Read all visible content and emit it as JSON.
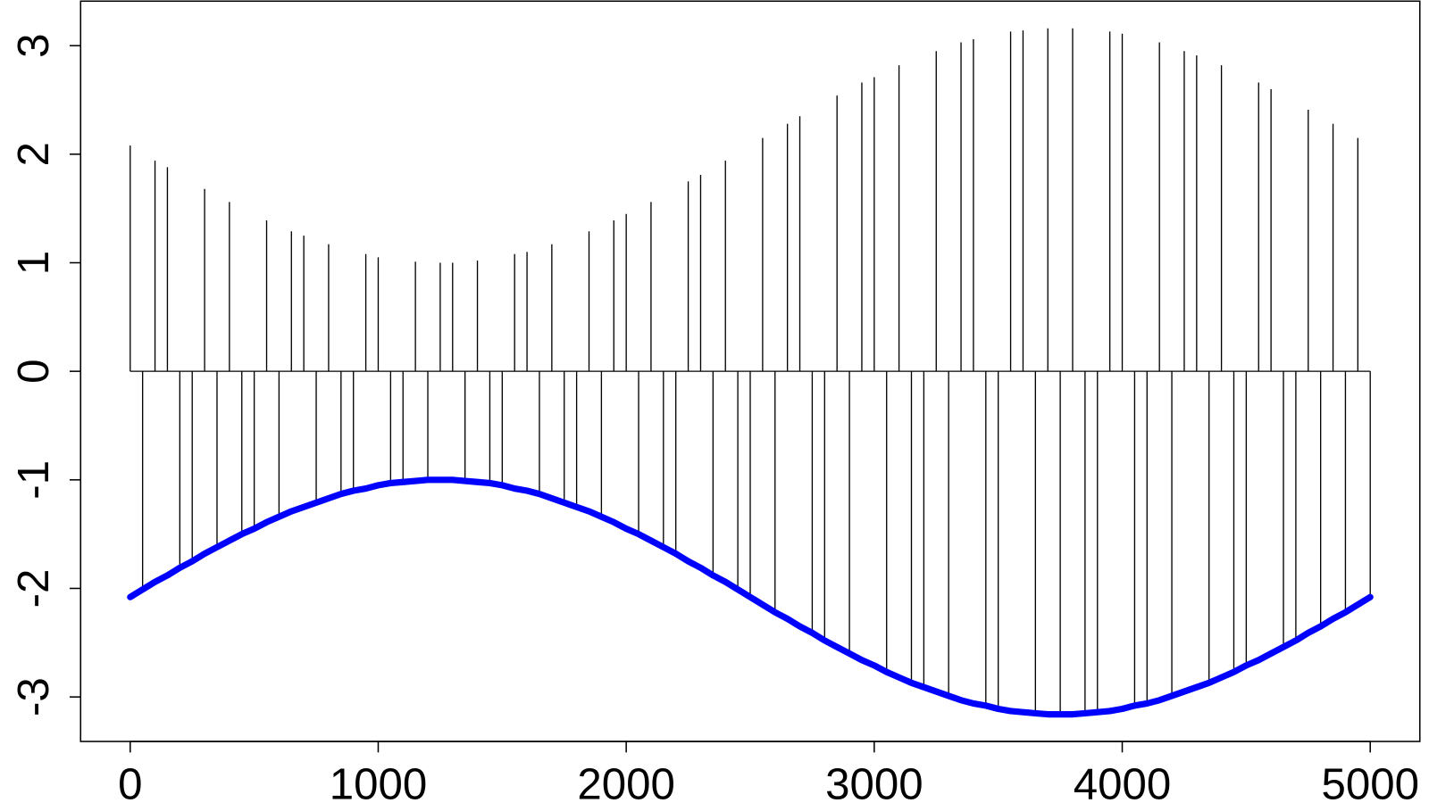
{
  "chart_data": {
    "type": "line",
    "x": [
      0,
      50,
      100,
      150,
      200,
      250,
      300,
      350,
      400,
      450,
      500,
      550,
      600,
      650,
      700,
      750,
      800,
      850,
      900,
      950,
      1000,
      1050,
      1100,
      1150,
      1200,
      1250,
      1300,
      1350,
      1400,
      1450,
      1500,
      1550,
      1600,
      1650,
      1700,
      1750,
      1800,
      1850,
      1900,
      1950,
      2000,
      2050,
      2100,
      2150,
      2200,
      2250,
      2300,
      2350,
      2400,
      2450,
      2500,
      2550,
      2600,
      2650,
      2700,
      2750,
      2800,
      2850,
      2900,
      2950,
      3000,
      3050,
      3100,
      3150,
      3200,
      3250,
      3300,
      3350,
      3400,
      3450,
      3500,
      3550,
      3600,
      3650,
      3700,
      3750,
      3800,
      3850,
      3900,
      3950,
      4000,
      4050,
      4100,
      4150,
      4200,
      4250,
      4300,
      4350,
      4400,
      4450,
      4500,
      4550,
      4600,
      4650,
      4700,
      4750,
      4800,
      4850,
      4900,
      4950,
      5000
    ],
    "series": [
      {
        "type": "spike",
        "color": "#000000",
        "values": [
          2.08,
          -2.01,
          1.94,
          1.88,
          -1.81,
          -1.75,
          1.68,
          -1.62,
          1.56,
          -1.5,
          -1.45,
          1.39,
          -1.34,
          1.29,
          1.25,
          -1.21,
          1.17,
          -1.13,
          -1.1,
          1.08,
          1.05,
          -1.03,
          -1.02,
          1.01,
          -1.0,
          1.0,
          1.0,
          -1.01,
          1.02,
          -1.03,
          -1.05,
          1.08,
          1.1,
          -1.13,
          1.17,
          -1.21,
          -1.25,
          1.29,
          -1.34,
          1.39,
          1.45,
          -1.5,
          1.56,
          -1.62,
          -1.68,
          1.75,
          1.81,
          -1.88,
          1.94,
          -2.01,
          -2.08,
          2.15,
          -2.22,
          2.28,
          2.35,
          -2.41,
          -2.48,
          2.54,
          -2.6,
          2.66,
          2.71,
          -2.77,
          2.82,
          -2.87,
          -2.91,
          2.95,
          -2.99,
          3.03,
          3.06,
          -3.08,
          -3.11,
          3.13,
          3.14,
          -3.15,
          3.16,
          -3.16,
          3.16,
          -3.15,
          -3.14,
          3.13,
          3.11,
          -3.08,
          -3.06,
          3.03,
          -2.99,
          2.95,
          2.91,
          -2.87,
          2.82,
          -2.77,
          -2.71,
          2.66,
          2.6,
          -2.54,
          -2.48,
          2.41,
          -2.35,
          2.28,
          -2.22,
          2.15,
          -2.08
        ]
      },
      {
        "type": "line",
        "color": "#0000ff",
        "values": [
          -2.08,
          -2.01,
          -1.94,
          -1.88,
          -1.81,
          -1.75,
          -1.68,
          -1.62,
          -1.56,
          -1.5,
          -1.45,
          -1.39,
          -1.34,
          -1.29,
          -1.25,
          -1.21,
          -1.17,
          -1.13,
          -1.1,
          -1.08,
          -1.05,
          -1.03,
          -1.02,
          -1.01,
          -1.0,
          -1.0,
          -1.0,
          -1.01,
          -1.02,
          -1.03,
          -1.05,
          -1.08,
          -1.1,
          -1.13,
          -1.17,
          -1.21,
          -1.25,
          -1.29,
          -1.34,
          -1.39,
          -1.45,
          -1.5,
          -1.56,
          -1.62,
          -1.68,
          -1.75,
          -1.81,
          -1.88,
          -1.94,
          -2.01,
          -2.08,
          -2.15,
          -2.22,
          -2.28,
          -2.35,
          -2.41,
          -2.48,
          -2.54,
          -2.6,
          -2.66,
          -2.71,
          -2.77,
          -2.82,
          -2.87,
          -2.91,
          -2.95,
          -2.99,
          -3.03,
          -3.06,
          -3.08,
          -3.11,
          -3.13,
          -3.14,
          -3.15,
          -3.16,
          -3.16,
          -3.16,
          -3.15,
          -3.14,
          -3.13,
          -3.11,
          -3.08,
          -3.06,
          -3.03,
          -2.99,
          -2.95,
          -2.91,
          -2.87,
          -2.82,
          -2.77,
          -2.71,
          -2.66,
          -2.6,
          -2.54,
          -2.48,
          -2.41,
          -2.35,
          -2.28,
          -2.22,
          -2.15,
          -2.08
        ]
      }
    ],
    "xlim": [
      -200,
      5200
    ],
    "ylim": [
      -3.41,
      3.41
    ],
    "xticks": [
      0,
      1000,
      2000,
      3000,
      4000,
      5000
    ],
    "yticks": [
      -3,
      -2,
      -1,
      0,
      1,
      2,
      3
    ]
  }
}
